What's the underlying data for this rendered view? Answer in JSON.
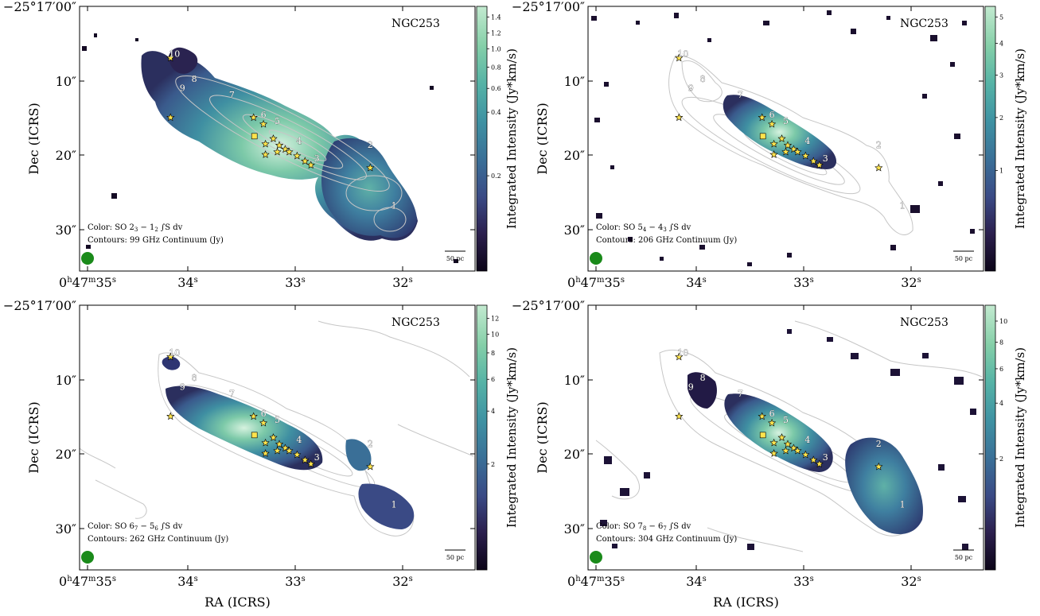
{
  "galaxy_label": "NGC253",
  "axes": {
    "ra_label": "RA (ICRS)",
    "dec_label": "Dec (ICRS)",
    "cbar_label": "Integrated Intensity (Jy*km/s)",
    "ra_ticks": [
      {
        "h": "0",
        "m": "47",
        "s": "35",
        "full": true
      },
      {
        "s": "34"
      },
      {
        "s": "33"
      },
      {
        "s": "32"
      }
    ],
    "dec_ticks": [
      {
        "text": "−25°17′00″",
        "full": true
      },
      {
        "text": "10″"
      },
      {
        "text": "20″"
      },
      {
        "text": "30″"
      }
    ]
  },
  "scalebar_label": "50 pc",
  "source_ids": [
    "1",
    "2",
    "3",
    "4",
    "5",
    "6",
    "7",
    "8",
    "9",
    "10"
  ],
  "panels": [
    {
      "id": "so-2-1",
      "color_base": "SO 2",
      "color_sub1": "3",
      "color_mid": " − 1",
      "color_sub2": "2",
      "color_tail": " ∫S dv",
      "contours": "Contours: 99 GHz Continuum (Jy)",
      "cbar_ticks": [
        "1.4",
        "1.2",
        "1.0",
        "0.8",
        "0.6",
        "0.4",
        "0.2"
      ]
    },
    {
      "id": "so-5-4",
      "color_base": "SO 5",
      "color_sub1": "4",
      "color_mid": " − 4",
      "color_sub2": "3",
      "color_tail": " ∫S dv",
      "contours": "Contours: 206 GHz Continuum (Jy)",
      "cbar_ticks": [
        "5",
        "4",
        "3",
        "2",
        "1"
      ]
    },
    {
      "id": "so-6-5",
      "color_base": "SO 6",
      "color_sub1": "7",
      "color_mid": " − 5",
      "color_sub2": "6",
      "color_tail": " ∫S dv",
      "contours": "Contours: 262 GHz Continuum (Jy)",
      "cbar_ticks": [
        "12",
        "10",
        "8",
        "6",
        "4",
        "2"
      ]
    },
    {
      "id": "so-7-6",
      "color_base": "SO 7",
      "color_sub1": "8",
      "color_mid": " − 6",
      "color_sub2": "7",
      "color_tail": " ∫S dv",
      "contours": "Contours: 304 GHz Continuum (Jy)",
      "cbar_ticks": [
        "10",
        "8",
        "6",
        "4",
        "2"
      ]
    }
  ],
  "colors": {
    "cmap": [
      "#0b0417",
      "#2b1f4d",
      "#3a4a85",
      "#3a6f97",
      "#3f93a3",
      "#56b3a6",
      "#85cfa8",
      "#c3ead0"
    ],
    "star": "#ffe34d",
    "contour": "#c6c6c6",
    "beam": "#1a8a1a"
  }
}
